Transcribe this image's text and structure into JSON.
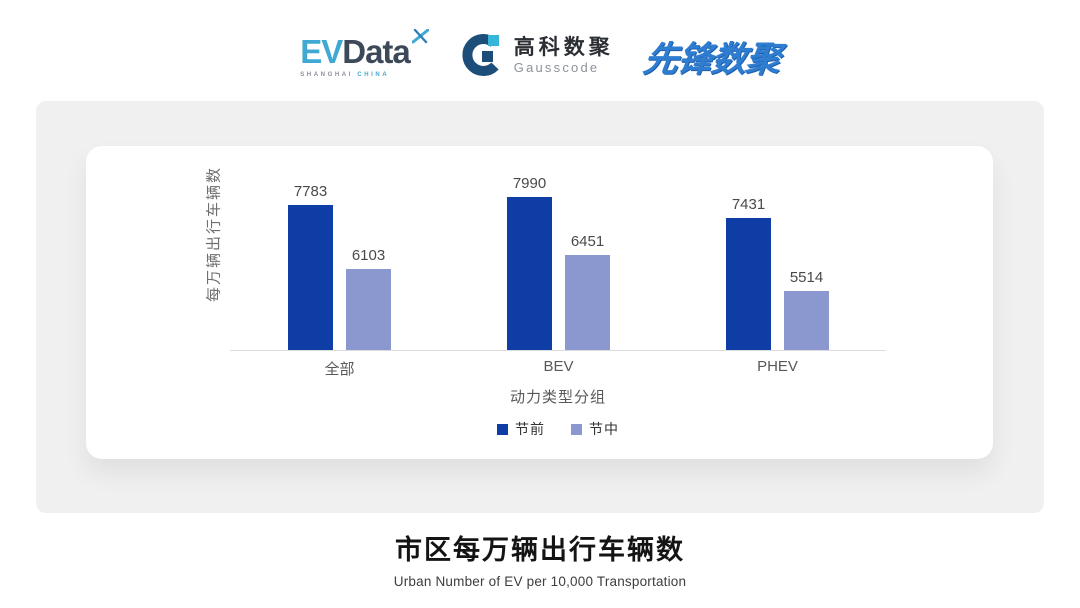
{
  "logos": {
    "evdata": {
      "ev": "EV",
      "data": "Data",
      "mark": "x-sparkle-icon",
      "sub_left": "SHANGHAI",
      "sub_right": "CHINA",
      "ev_color": "#3fa9d4",
      "data_color": "#3d4858"
    },
    "gausscode": {
      "cn": "高科数聚",
      "en": "Gausscode",
      "icon": "g-circle-icon",
      "icon_dark": "#1d4e79",
      "icon_teal": "#35b6d9"
    },
    "pioneer": {
      "text": "先锋数聚",
      "color": "#2e7dd1"
    }
  },
  "chart_data": {
    "type": "bar",
    "title": "市区每万辆出行车辆数",
    "subtitle": "Urban Number of EV per 10,000 Transportation",
    "categories": [
      "全部",
      "BEV",
      "PHEV"
    ],
    "series": [
      {
        "name": "节前",
        "color": "#0e3da5",
        "values": [
          7783,
          7990,
          7431
        ]
      },
      {
        "name": "节中",
        "color": "#8b98d0",
        "values": [
          6103,
          6451,
          5514
        ]
      }
    ],
    "xlabel": "动力类型分组",
    "ylabel": "每万辆出行车辆数",
    "ylim": [
      3950,
      8050
    ],
    "grid": false,
    "legend_position": "bottom",
    "value_labels": true
  }
}
